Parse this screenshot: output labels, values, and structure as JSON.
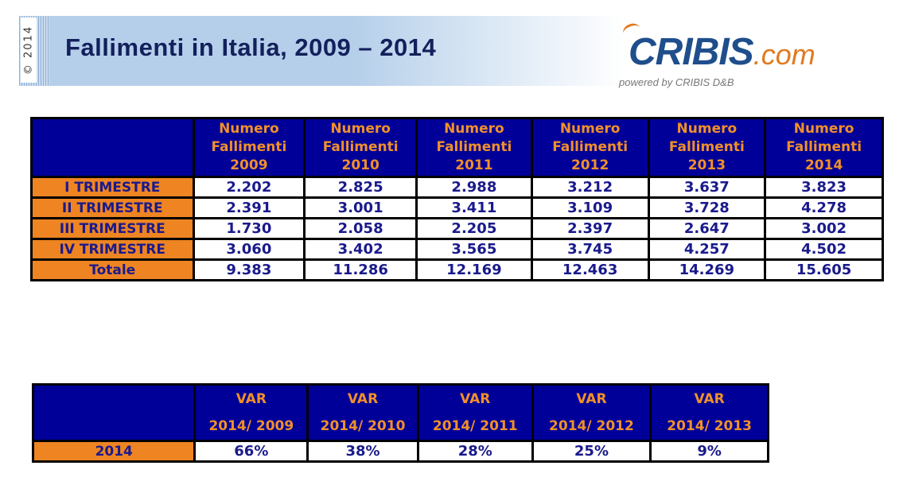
{
  "header": {
    "copyright": "© 2014",
    "title": "Fallimenti in Italia, 2009 – 2014",
    "logo_main": "CRIBIS",
    "logo_suffix": ".com",
    "logo_tagline": "powered by CRIBIS D&B"
  },
  "table1": {
    "columns": [
      [
        "Numero",
        "Fallimenti",
        "2009"
      ],
      [
        "Numero",
        "Fallimenti",
        "2010"
      ],
      [
        "Numero",
        "Fallimenti",
        "2011"
      ],
      [
        "Numero",
        "Fallimenti",
        "2012"
      ],
      [
        "Numero",
        "Fallimenti",
        "2013"
      ],
      [
        "Numero",
        "Fallimenti",
        "2014"
      ]
    ],
    "rows": [
      {
        "label": "I TRIMESTRE",
        "values": [
          "2.202",
          "2.825",
          "2.988",
          "3.212",
          "3.637",
          "3.823"
        ]
      },
      {
        "label": "II TRIMESTRE",
        "values": [
          "2.391",
          "3.001",
          "3.411",
          "3.109",
          "3.728",
          "4.278"
        ]
      },
      {
        "label": "III TRIMESTRE",
        "values": [
          "1.730",
          "2.058",
          "2.205",
          "2.397",
          "2.647",
          "3.002"
        ]
      },
      {
        "label": "IV TRIMESTRE",
        "values": [
          "3.060",
          "3.402",
          "3.565",
          "3.745",
          "4.257",
          "4.502"
        ]
      },
      {
        "label": "Totale",
        "values": [
          "9.383",
          "11.286",
          "12.169",
          "12.463",
          "14.269",
          "15.605"
        ]
      }
    ]
  },
  "table2": {
    "columns": [
      [
        "VAR",
        "2014/ 2009"
      ],
      [
        "VAR",
        "2014/ 2010"
      ],
      [
        "VAR",
        "2014/ 2011"
      ],
      [
        "VAR",
        "2014/ 2012"
      ],
      [
        "VAR",
        "2014/ 2013"
      ]
    ],
    "rows": [
      {
        "label": "2014",
        "values": [
          "66%",
          "38%",
          "28%",
          "25%",
          "9%"
        ]
      }
    ]
  }
}
